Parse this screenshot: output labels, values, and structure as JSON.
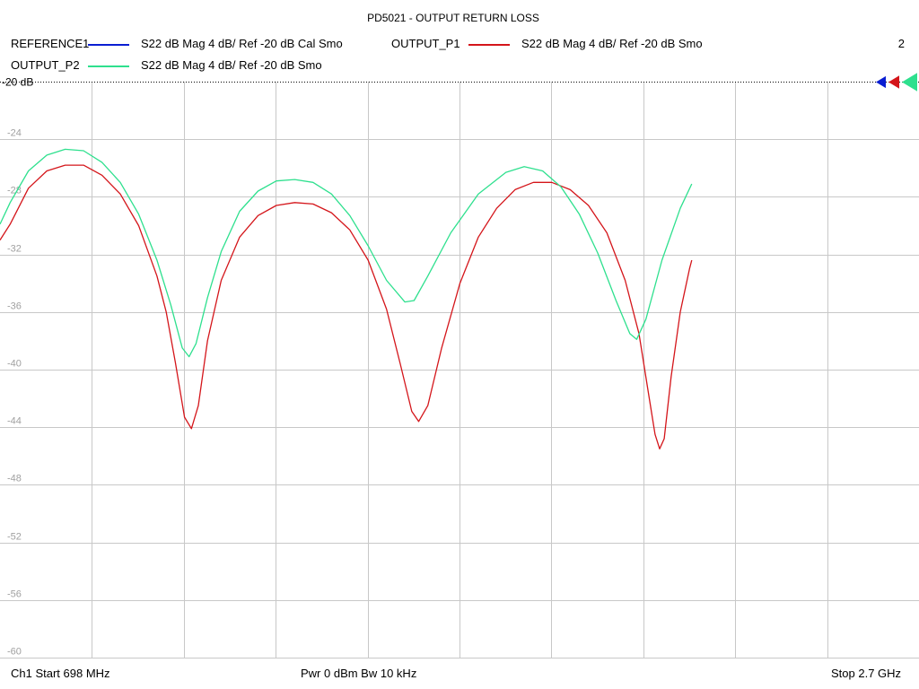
{
  "title": "PD5021 - OUTPUT RETURN LOSS",
  "legend": {
    "ref_name": "REFERENCE1",
    "ref_desc": "S22  dB Mag  4 dB/ Ref -20 dB  Cal Smo",
    "p1_name": "OUTPUT_P1",
    "p1_desc": "S22  dB Mag  4 dB/ Ref -20 dB  Smo",
    "p2_name": "OUTPUT_P2",
    "p2_desc": "S22  dB Mag  4 dB/ Ref -20 dB  Smo",
    "count": "2"
  },
  "ref_label": "-20 dB",
  "footer": {
    "start": "Ch1  Start  698 MHz",
    "power": "Pwr  0 dBm  Bw  10 kHz",
    "stop": "Stop  2.7 GHz"
  },
  "colors": {
    "reference": "#0a1ed2",
    "output_p1": "#d4151a",
    "output_p2": "#2ee08e",
    "grid": "#c8c8c8",
    "tick_text": "#a0a0a0"
  },
  "chart_data": {
    "type": "line",
    "title": "PD5021 - OUTPUT RETURN LOSS",
    "x_unit": "MHz",
    "xlim": [
      698,
      2700
    ],
    "ylim": [
      -60,
      -20
    ],
    "yticks": [
      -24,
      -28,
      -32,
      -36,
      -40,
      -44,
      -48,
      -52,
      -56,
      -60
    ],
    "ytick_labels": [
      "-24",
      "-28",
      "-32",
      "-36",
      "-40",
      "-44",
      "-48",
      "-52",
      "-56",
      "-60"
    ],
    "x_divisions": 10,
    "reference_level": -20,
    "grid": true,
    "series": [
      {
        "name": "OUTPUT_P1",
        "color": "#d4151a",
        "points": [
          [
            698,
            -31.0
          ],
          [
            720,
            -29.9
          ],
          [
            760,
            -27.4
          ],
          [
            800,
            -26.2
          ],
          [
            840,
            -25.8
          ],
          [
            880,
            -25.8
          ],
          [
            920,
            -26.5
          ],
          [
            960,
            -27.8
          ],
          [
            1000,
            -30.0
          ],
          [
            1040,
            -33.5
          ],
          [
            1060,
            -36.0
          ],
          [
            1080,
            -39.5
          ],
          [
            1100,
            -43.3
          ],
          [
            1115,
            -44.1
          ],
          [
            1130,
            -42.5
          ],
          [
            1150,
            -38.0
          ],
          [
            1180,
            -33.8
          ],
          [
            1220,
            -30.8
          ],
          [
            1260,
            -29.3
          ],
          [
            1300,
            -28.6
          ],
          [
            1340,
            -28.4
          ],
          [
            1380,
            -28.5
          ],
          [
            1420,
            -29.1
          ],
          [
            1460,
            -30.3
          ],
          [
            1500,
            -32.4
          ],
          [
            1540,
            -35.8
          ],
          [
            1570,
            -39.6
          ],
          [
            1595,
            -42.9
          ],
          [
            1610,
            -43.6
          ],
          [
            1630,
            -42.5
          ],
          [
            1660,
            -38.5
          ],
          [
            1700,
            -34.0
          ],
          [
            1740,
            -30.8
          ],
          [
            1780,
            -28.8
          ],
          [
            1820,
            -27.5
          ],
          [
            1860,
            -27.0
          ],
          [
            1900,
            -27.0
          ],
          [
            1940,
            -27.5
          ],
          [
            1980,
            -28.6
          ],
          [
            2020,
            -30.5
          ],
          [
            2060,
            -33.8
          ],
          [
            2090,
            -37.5
          ],
          [
            2110,
            -41.5
          ],
          [
            2125,
            -44.5
          ],
          [
            2135,
            -45.5
          ],
          [
            2145,
            -44.8
          ],
          [
            2160,
            -40.5
          ],
          [
            2180,
            -36.0
          ],
          [
            2200,
            -33.0
          ],
          [
            2205,
            -32.4
          ]
        ]
      },
      {
        "name": "OUTPUT_P2",
        "color": "#2ee08e",
        "points": [
          [
            698,
            -29.9
          ],
          [
            720,
            -28.4
          ],
          [
            760,
            -26.2
          ],
          [
            800,
            -25.1
          ],
          [
            840,
            -24.7
          ],
          [
            880,
            -24.8
          ],
          [
            920,
            -25.6
          ],
          [
            960,
            -27.0
          ],
          [
            1000,
            -29.2
          ],
          [
            1040,
            -32.4
          ],
          [
            1070,
            -35.5
          ],
          [
            1095,
            -38.5
          ],
          [
            1110,
            -39.1
          ],
          [
            1125,
            -38.2
          ],
          [
            1150,
            -35.0
          ],
          [
            1180,
            -31.8
          ],
          [
            1220,
            -29.0
          ],
          [
            1260,
            -27.6
          ],
          [
            1300,
            -26.9
          ],
          [
            1340,
            -26.8
          ],
          [
            1380,
            -27.0
          ],
          [
            1420,
            -27.8
          ],
          [
            1460,
            -29.3
          ],
          [
            1500,
            -31.4
          ],
          [
            1540,
            -33.8
          ],
          [
            1580,
            -35.3
          ],
          [
            1600,
            -35.2
          ],
          [
            1630,
            -33.5
          ],
          [
            1680,
            -30.5
          ],
          [
            1740,
            -27.8
          ],
          [
            1800,
            -26.3
          ],
          [
            1840,
            -25.9
          ],
          [
            1880,
            -26.2
          ],
          [
            1920,
            -27.3
          ],
          [
            1960,
            -29.2
          ],
          [
            2000,
            -31.9
          ],
          [
            2040,
            -35.2
          ],
          [
            2070,
            -37.5
          ],
          [
            2085,
            -37.9
          ],
          [
            2105,
            -36.5
          ],
          [
            2140,
            -32.4
          ],
          [
            2180,
            -28.8
          ],
          [
            2205,
            -27.1
          ]
        ]
      }
    ]
  }
}
